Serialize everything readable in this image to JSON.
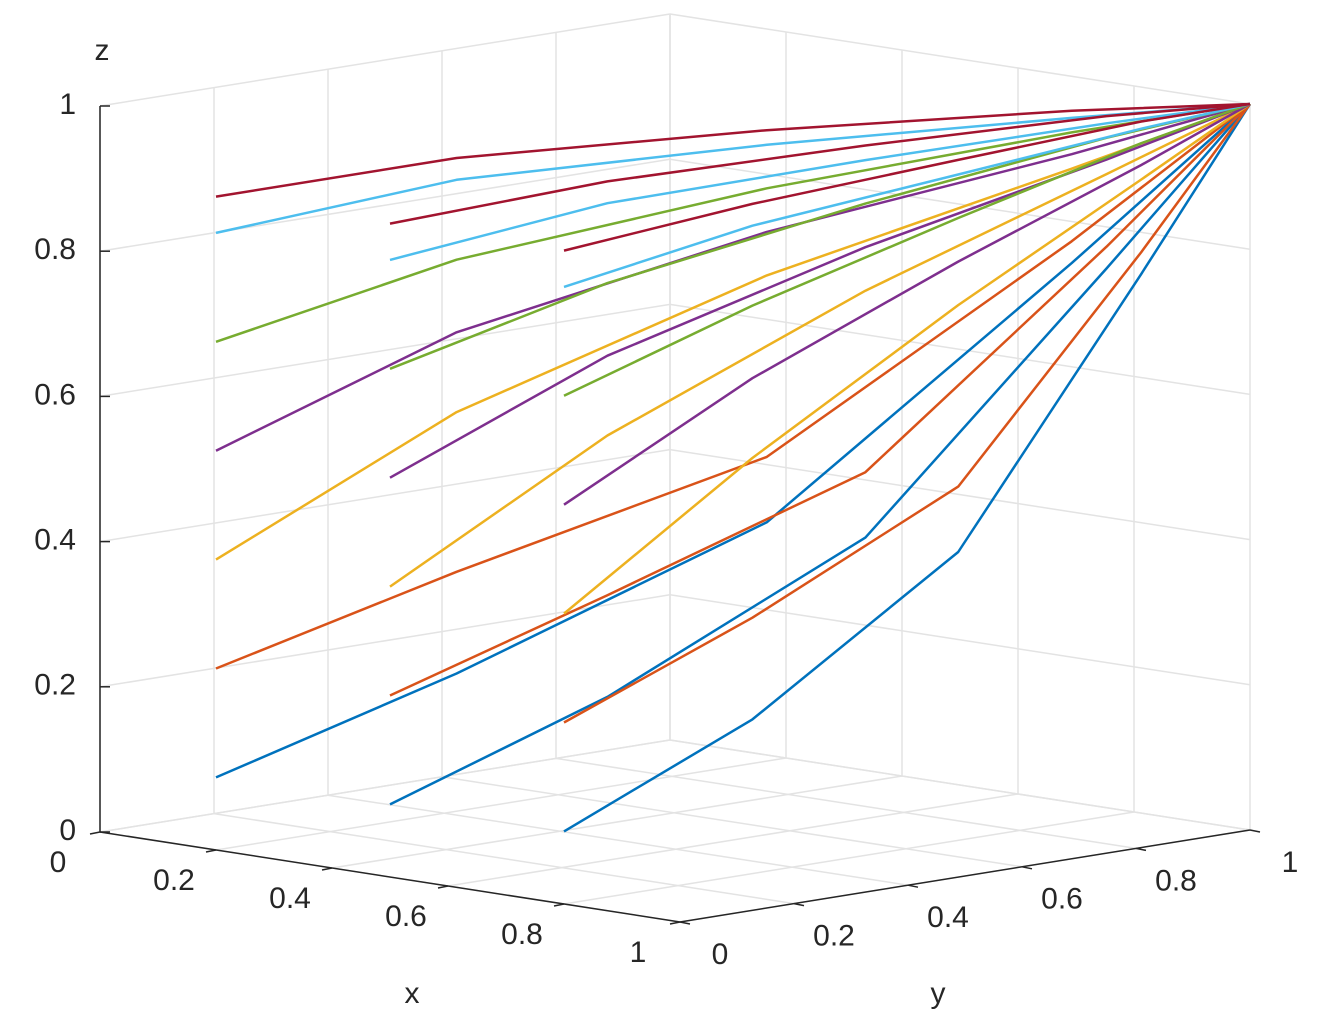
{
  "chart_data": {
    "type": "line3d",
    "xlabel": "x",
    "ylabel": "y",
    "zlabel": "z",
    "xlim": [
      0,
      1
    ],
    "ylim": [
      0,
      1
    ],
    "zlim": [
      0,
      1
    ],
    "xticks": [
      0,
      0.2,
      0.4,
      0.6,
      0.8,
      1
    ],
    "yticks": [
      0,
      0.2,
      0.4,
      0.6,
      0.8,
      1
    ],
    "zticks": [
      0,
      0.2,
      0.4,
      0.6,
      0.8,
      1
    ],
    "grid": true,
    "series": [
      {
        "color": "#0072BD",
        "x": [
          0.2,
          0.32,
          0.56,
          0.84,
          1
        ],
        "y": [
          0,
          0.3,
          0.6,
          0.85,
          1
        ],
        "z": [
          0.1,
          0.22,
          0.42,
          0.78,
          1
        ]
      },
      {
        "color": "#D95319",
        "x": [
          0.2,
          0.32,
          0.56,
          0.84,
          1
        ],
        "y": [
          0,
          0.3,
          0.6,
          0.85,
          1
        ],
        "z": [
          0.25,
          0.36,
          0.51,
          0.81,
          1
        ]
      },
      {
        "color": "#EDB120",
        "x": [
          0.2,
          0.32,
          0.56,
          0.84,
          1
        ],
        "y": [
          0,
          0.3,
          0.6,
          0.85,
          1
        ],
        "z": [
          0.4,
          0.58,
          0.76,
          0.91,
          1
        ]
      },
      {
        "color": "#7E2F8E",
        "x": [
          0.2,
          0.32,
          0.56,
          0.84,
          1
        ],
        "y": [
          0,
          0.3,
          0.6,
          0.85,
          1
        ],
        "z": [
          0.55,
          0.69,
          0.82,
          0.93,
          1
        ]
      },
      {
        "color": "#77AC30",
        "x": [
          0.2,
          0.32,
          0.56,
          0.84,
          1
        ],
        "y": [
          0,
          0.3,
          0.6,
          0.85,
          1
        ],
        "z": [
          0.7,
          0.79,
          0.88,
          0.96,
          1
        ]
      },
      {
        "color": "#4DBEEE",
        "x": [
          0.2,
          0.32,
          0.56,
          0.84,
          1
        ],
        "y": [
          0,
          0.3,
          0.6,
          0.85,
          1
        ],
        "z": [
          0.85,
          0.9,
          0.94,
          0.98,
          1
        ]
      },
      {
        "color": "#A2142F",
        "x": [
          0.2,
          0.32,
          0.56,
          0.84,
          1
        ],
        "y": [
          0,
          0.3,
          0.6,
          0.85,
          1
        ],
        "z": [
          0.9,
          0.93,
          0.96,
          0.99,
          1
        ]
      },
      {
        "color": "#0072BD",
        "x": [
          0.5,
          0.58,
          0.73,
          0.9,
          1
        ],
        "y": [
          0,
          0.3,
          0.6,
          0.85,
          1
        ],
        "z": [
          0.1,
          0.22,
          0.42,
          0.78,
          1
        ]
      },
      {
        "color": "#D95319",
        "x": [
          0.5,
          0.58,
          0.73,
          0.9,
          1
        ],
        "y": [
          0,
          0.3,
          0.6,
          0.85,
          1
        ],
        "z": [
          0.25,
          0.36,
          0.51,
          0.81,
          1
        ]
      },
      {
        "color": "#EDB120",
        "x": [
          0.5,
          0.58,
          0.73,
          0.9,
          1
        ],
        "y": [
          0,
          0.3,
          0.6,
          0.85,
          1
        ],
        "z": [
          0.4,
          0.58,
          0.76,
          0.91,
          1
        ]
      },
      {
        "color": "#7E2F8E",
        "x": [
          0.5,
          0.58,
          0.73,
          0.9,
          1
        ],
        "y": [
          0,
          0.3,
          0.6,
          0.85,
          1
        ],
        "z": [
          0.55,
          0.69,
          0.82,
          0.93,
          1
        ]
      },
      {
        "color": "#77AC30",
        "x": [
          0.5,
          0.58,
          0.73,
          0.9,
          1
        ],
        "y": [
          0,
          0.3,
          0.6,
          0.85,
          1
        ],
        "z": [
          0.7,
          0.79,
          0.88,
          0.96,
          1
        ]
      },
      {
        "color": "#4DBEEE",
        "x": [
          0.5,
          0.58,
          0.73,
          0.9,
          1
        ],
        "y": [
          0,
          0.3,
          0.6,
          0.85,
          1
        ],
        "z": [
          0.85,
          0.9,
          0.94,
          0.98,
          1
        ]
      },
      {
        "color": "#A2142F",
        "x": [
          0.5,
          0.58,
          0.73,
          0.9,
          1
        ],
        "y": [
          0,
          0.3,
          0.6,
          0.85,
          1
        ],
        "z": [
          0.9,
          0.93,
          0.96,
          0.99,
          1
        ]
      },
      {
        "color": "#0072BD",
        "x": [
          0.8,
          0.83,
          0.89,
          0.96,
          1
        ],
        "y": [
          0,
          0.3,
          0.6,
          0.85,
          1
        ],
        "z": [
          0.1,
          0.22,
          0.42,
          0.78,
          1
        ]
      },
      {
        "color": "#D95319",
        "x": [
          0.8,
          0.83,
          0.89,
          0.96,
          1
        ],
        "y": [
          0,
          0.3,
          0.6,
          0.85,
          1
        ],
        "z": [
          0.25,
          0.36,
          0.51,
          0.81,
          1
        ]
      },
      {
        "color": "#EDB120",
        "x": [
          0.8,
          0.83,
          0.89,
          0.96,
          1
        ],
        "y": [
          0,
          0.3,
          0.6,
          0.85,
          1
        ],
        "z": [
          0.4,
          0.58,
          0.76,
          0.91,
          1
        ]
      },
      {
        "color": "#7E2F8E",
        "x": [
          0.8,
          0.83,
          0.89,
          0.96,
          1
        ],
        "y": [
          0,
          0.3,
          0.6,
          0.85,
          1
        ],
        "z": [
          0.55,
          0.69,
          0.82,
          0.93,
          1
        ]
      },
      {
        "color": "#77AC30",
        "x": [
          0.8,
          0.83,
          0.89,
          0.96,
          1
        ],
        "y": [
          0,
          0.3,
          0.6,
          0.85,
          1
        ],
        "z": [
          0.7,
          0.79,
          0.88,
          0.96,
          1
        ]
      },
      {
        "color": "#4DBEEE",
        "x": [
          0.8,
          0.83,
          0.89,
          0.96,
          1
        ],
        "y": [
          0,
          0.3,
          0.6,
          0.85,
          1
        ],
        "z": [
          0.85,
          0.9,
          0.94,
          0.98,
          1
        ]
      },
      {
        "color": "#A2142F",
        "x": [
          0.8,
          0.83,
          0.89,
          0.96,
          1
        ],
        "y": [
          0,
          0.3,
          0.6,
          0.85,
          1
        ],
        "z": [
          0.9,
          0.93,
          0.96,
          0.99,
          1
        ]
      }
    ]
  }
}
